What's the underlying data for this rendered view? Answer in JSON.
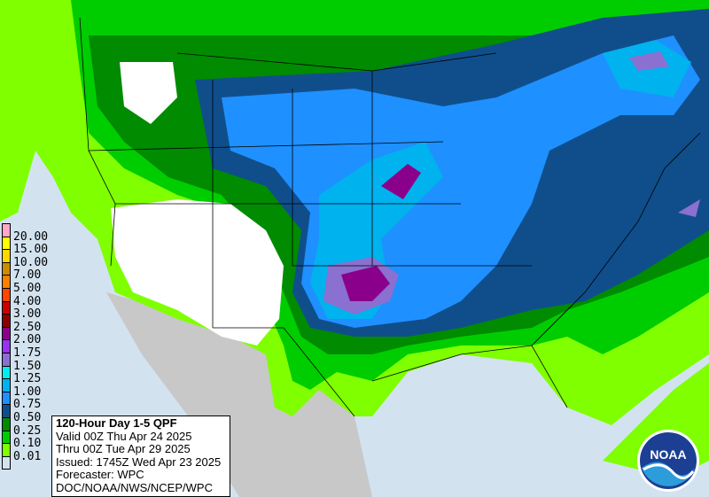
{
  "map": {
    "title": "120-Hour Day 1-5 QPF",
    "valid": "Valid 00Z Thu Apr 24 2025",
    "thru": "Thru 00Z Tue Apr 29 2025",
    "issued": "Issued: 1745Z Wed Apr 23 2025",
    "forecaster": "Forecaster: WPC",
    "agency": "DOC/NOAA/NWS/NCEP/WPC",
    "logo_text": "NOAA"
  },
  "legend": {
    "labels": [
      "20.00",
      "15.00",
      "10.00",
      "7.00",
      "5.00",
      "4.00",
      "3.00",
      "2.50",
      "2.00",
      "1.75",
      "1.50",
      "1.25",
      "1.00",
      "0.75",
      "0.50",
      "0.25",
      "0.10",
      "0.01"
    ],
    "colors": [
      "#ffa8c8",
      "#ffff00",
      "#ffd700",
      "#cd8c00",
      "#ff7f00",
      "#ff4500",
      "#cc0000",
      "#8b0000",
      "#8b008b",
      "#9932f0",
      "#8a70d0",
      "#00eeee",
      "#00b2ee",
      "#1e90ff",
      "#104e8b",
      "#008b00",
      "#00cd00",
      "#7fff00",
      "#d3e2ef"
    ]
  },
  "colors": {
    "ocean": "#d3e2ef",
    "foreign_land": "#c8c8c8",
    "dry": "#ffffff"
  }
}
